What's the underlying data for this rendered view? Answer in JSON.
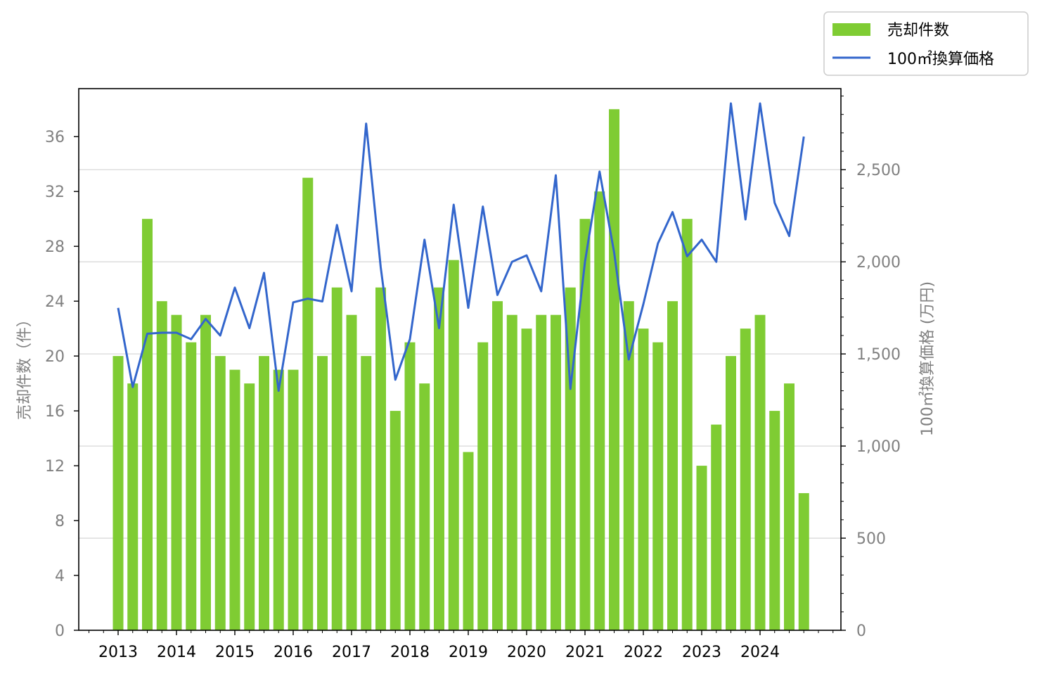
{
  "chart_data": {
    "type": "bar+line",
    "title": "",
    "colors": {
      "bar": "#7fcc33",
      "line": "#3366cc",
      "grid": "#d9d9d9",
      "axis_text": "#808080"
    },
    "x_tick_labels": [
      "2013",
      "2014",
      "2015",
      "2016",
      "2017",
      "2018",
      "2019",
      "2020",
      "2021",
      "2022",
      "2023",
      "2024"
    ],
    "periods_per_year": 4,
    "legend": {
      "placement": "top-right",
      "bar_label": "売却件数",
      "line_label": "100㎡換算価格"
    },
    "y_left": {
      "label": "売却件数（件）",
      "range": [
        0,
        39.5
      ],
      "ticks": [
        0,
        4,
        8,
        12,
        16,
        20,
        24,
        28,
        32,
        36
      ],
      "tick_labels": [
        "0",
        "4",
        "8",
        "12",
        "16",
        "20",
        "24",
        "28",
        "32",
        "36"
      ]
    },
    "y_right": {
      "label": "100㎡換算価格 (万円)",
      "range": [
        0,
        2940
      ],
      "ticks": [
        0,
        500,
        1000,
        1500,
        2000,
        2500
      ],
      "tick_labels": [
        "0",
        "500",
        "1,000",
        "1,500",
        "2,000",
        "2,500"
      ],
      "grid": true
    },
    "series": [
      {
        "name": "売却件数",
        "type": "bar",
        "axis": "left",
        "values": [
          20,
          18,
          30,
          24,
          23,
          21,
          23,
          20,
          19,
          18,
          20,
          19,
          19,
          33,
          20,
          25,
          23,
          20,
          25,
          16,
          21,
          18,
          25,
          27,
          13,
          21,
          24,
          23,
          22,
          23,
          23,
          25,
          30,
          32,
          38,
          24,
          22,
          21,
          24,
          30,
          12,
          15,
          20,
          22,
          23,
          16,
          18,
          10
        ]
      },
      {
        "name": "100㎡換算価格",
        "type": "line",
        "axis": "right",
        "values": [
          1750,
          1320,
          1610,
          1615,
          1615,
          1580,
          1690,
          1600,
          1860,
          1640,
          1940,
          1300,
          1780,
          1800,
          1785,
          2200,
          1840,
          2750,
          1970,
          1360,
          1580,
          2120,
          1640,
          2310,
          1750,
          2300,
          1820,
          2000,
          2035,
          1840,
          2470,
          1310,
          2000,
          2490,
          2050,
          1470,
          1770,
          2100,
          2270,
          2030,
          2120,
          2000,
          2860,
          2230,
          2860,
          2320,
          2140,
          2680
        ]
      }
    ]
  }
}
